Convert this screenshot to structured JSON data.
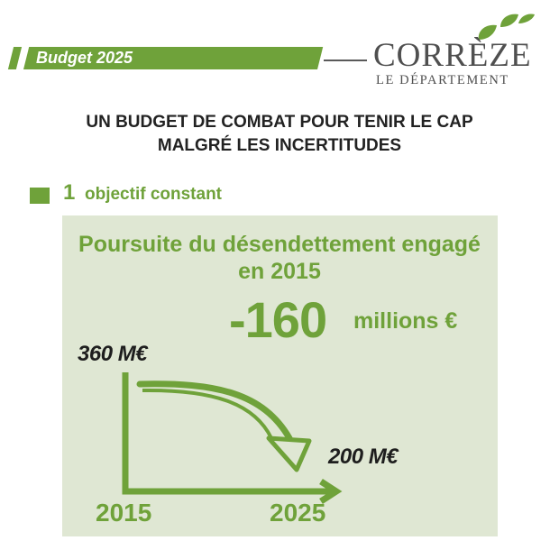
{
  "header": {
    "banner_label": "Budget 2025",
    "logo_name": "CORRÈZE",
    "logo_subtitle": "LE DÉPARTEMENT",
    "brand_color": "#6fa23a"
  },
  "title": {
    "line1": "UN BUDGET DE COMBAT POUR TENIR LE CAP",
    "line2": "MALGRÉ LES INCERTITUDES"
  },
  "objective": {
    "number": "1",
    "text": "objectif constant"
  },
  "panel": {
    "title_line1": "Poursuite du désendettement engagé",
    "title_line2": "en 2015",
    "reduction_value": "-160",
    "reduction_unit": "millions €",
    "start_value": "360 M€",
    "end_value": "200 M€",
    "start_year": "2015",
    "end_year": "2025",
    "background_color": "#dfe7d3"
  }
}
